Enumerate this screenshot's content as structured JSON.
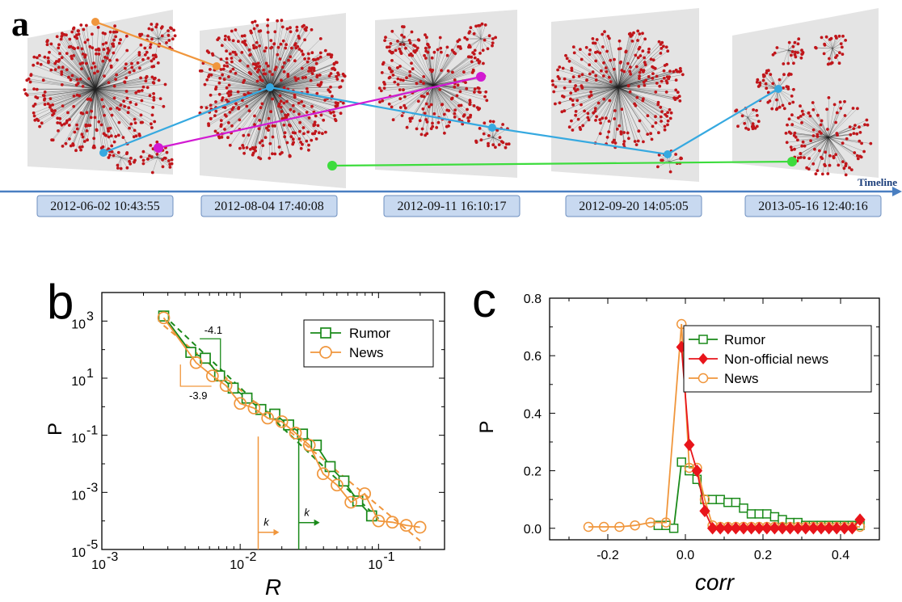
{
  "panel_a": {
    "label": "a",
    "timeline_label": "Timeline",
    "timestamps": [
      "2012-06-02 10:43:55",
      "2012-08-04 17:40:08",
      "2012-09-11 16:10:17",
      "2012-09-20 14:05:05",
      "2013-05-16 12:40:16"
    ],
    "colors": {
      "node": "#c0161b",
      "panel": "#e4e4e4",
      "orange": "#f0963c",
      "cyan": "#36a9e0",
      "magenta": "#d21ad2",
      "green": "#3ddc3d",
      "timeline": "#4a7fc1"
    }
  },
  "chart_data": [
    {
      "panel_label": "b",
      "type": "scatter",
      "xlabel": "R",
      "ylabel": "P",
      "xscale": "log",
      "yscale": "log",
      "xlim": [
        0.001,
        0.3
      ],
      "ylim": [
        1e-05,
        10000
      ],
      "x_ticks": [
        "10",
        "10",
        "10"
      ],
      "x_tick_exps": [
        "-3",
        "-2",
        "-1"
      ],
      "y_ticks": [
        "10",
        "10",
        "10",
        "10",
        "10"
      ],
      "y_tick_exps": [
        "-5",
        "-3",
        "-1",
        "1",
        "3"
      ],
      "legend_position": "top-right",
      "series": [
        {
          "name": "Rumor",
          "color": "#1a8a1a",
          "marker": "square",
          "x": [
            0.0028,
            0.0044,
            0.0056,
            0.0071,
            0.0089,
            0.0112,
            0.0141,
            0.0178,
            0.0224,
            0.0282,
            0.0355,
            0.0447,
            0.0562,
            0.0708,
            0.0891
          ],
          "y": [
            1500,
            80,
            50,
            12,
            4.5,
            2,
            0.8,
            0.55,
            0.23,
            0.11,
            0.045,
            0.008,
            0.0025,
            0.0005,
            0.00015
          ]
        },
        {
          "name": "News",
          "color": "#f0963c",
          "marker": "circle",
          "x": [
            0.0028,
            0.0048,
            0.0063,
            0.0079,
            0.01,
            0.0126,
            0.0158,
            0.02,
            0.0251,
            0.0316,
            0.0398,
            0.0501,
            0.0631,
            0.0794,
            0.1,
            0.1259,
            0.1585,
            0.1995
          ],
          "y": [
            1300,
            35,
            12,
            5.5,
            1.3,
            0.9,
            0.4,
            0.3,
            0.12,
            0.045,
            0.0045,
            0.0018,
            0.00045,
            0.0009,
            0.0001,
            9e-05,
            7e-05,
            6e-05
          ]
        }
      ],
      "fit_lines": [
        {
          "color": "#1a8a1a",
          "slope_label": "-4.1",
          "x": [
            0.0028,
            0.1
          ],
          "y": [
            1600,
            0.00012
          ]
        },
        {
          "color": "#f0963c",
          "slope_label": "-3.9",
          "x": [
            0.0028,
            0.2
          ],
          "y": [
            700,
            2e-05
          ]
        }
      ],
      "thresholds": [
        {
          "color": "#f0963c",
          "x": 0.0135,
          "label": "k"
        },
        {
          "color": "#1a8a1a",
          "x": 0.0265,
          "label": "k"
        }
      ]
    },
    {
      "panel_label": "c",
      "type": "line",
      "xlabel": "corr",
      "ylabel": "P",
      "xlim": [
        -0.35,
        0.5
      ],
      "ylim": [
        -0.04,
        0.8
      ],
      "x_ticks": [
        "-0.2",
        "0.0",
        "0.2",
        "0.4"
      ],
      "y_ticks": [
        "0.0",
        "0.2",
        "0.4",
        "0.6",
        "0.8"
      ],
      "legend_position": "top-right",
      "series": [
        {
          "name": "Rumor",
          "color": "#1a8a1a",
          "marker": "square",
          "x": [
            -0.07,
            -0.05,
            -0.03,
            -0.01,
            0.01,
            0.03,
            0.05,
            0.07,
            0.09,
            0.11,
            0.13,
            0.15,
            0.17,
            0.19,
            0.21,
            0.23,
            0.25,
            0.27,
            0.29,
            0.31,
            0.33,
            0.35,
            0.37,
            0.39,
            0.41,
            0.43,
            0.45
          ],
          "y": [
            0.01,
            0.01,
            0.0,
            0.23,
            0.2,
            0.17,
            0.1,
            0.1,
            0.1,
            0.09,
            0.09,
            0.07,
            0.05,
            0.05,
            0.05,
            0.04,
            0.03,
            0.02,
            0.02,
            0.01,
            0.01,
            0.01,
            0.01,
            0.01,
            0.01,
            0.01,
            0.01
          ]
        },
        {
          "name": "Non-official news",
          "color": "#e8151b",
          "marker": "diamond",
          "x": [
            -0.01,
            0.01,
            0.03,
            0.05,
            0.07,
            0.09,
            0.11,
            0.13,
            0.15,
            0.17,
            0.19,
            0.21,
            0.23,
            0.25,
            0.27,
            0.29,
            0.31,
            0.33,
            0.35,
            0.37,
            0.39,
            0.41,
            0.43,
            0.45
          ],
          "y": [
            0.63,
            0.29,
            0.2,
            0.06,
            0.0,
            0.0,
            0.0,
            0.0,
            0.0,
            0.0,
            0.0,
            0.0,
            0.0,
            0.0,
            0.0,
            0.0,
            0.0,
            0.0,
            0.0,
            0.0,
            0.0,
            0.0,
            0.0,
            0.03
          ]
        },
        {
          "name": "News",
          "color": "#f0963c",
          "marker": "circle",
          "x": [
            -0.25,
            -0.21,
            -0.17,
            -0.13,
            -0.09,
            -0.05,
            -0.01,
            0.01,
            0.03,
            0.05,
            0.07,
            0.09,
            0.11,
            0.13,
            0.15,
            0.17,
            0.19,
            0.21,
            0.23,
            0.25,
            0.27,
            0.29,
            0.31,
            0.33,
            0.35,
            0.37,
            0.39,
            0.41,
            0.43,
            0.45
          ],
          "y": [
            0.005,
            0.005,
            0.005,
            0.01,
            0.02,
            0.02,
            0.71,
            0.21,
            0.21,
            0.1,
            0.01,
            0.005,
            0.005,
            0.005,
            0.005,
            0.005,
            0.005,
            0.005,
            0.005,
            0.005,
            0.005,
            0.005,
            0.005,
            0.005,
            0.005,
            0.005,
            0.005,
            0.005,
            0.005,
            0.005
          ]
        }
      ]
    }
  ]
}
